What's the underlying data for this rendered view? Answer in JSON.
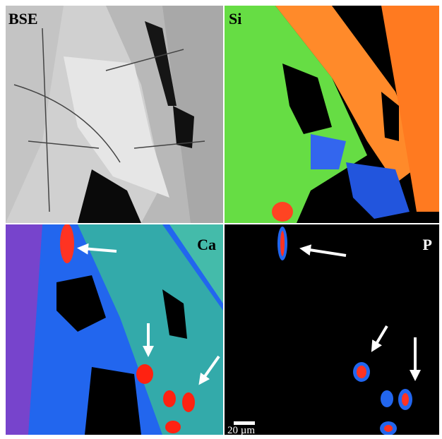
{
  "panels": [
    {
      "label": "BSE"
    },
    {
      "label": "Si"
    },
    {
      "label": "Ca"
    },
    {
      "label": "P"
    }
  ],
  "scale_bar": {
    "label": "20 µm"
  }
}
